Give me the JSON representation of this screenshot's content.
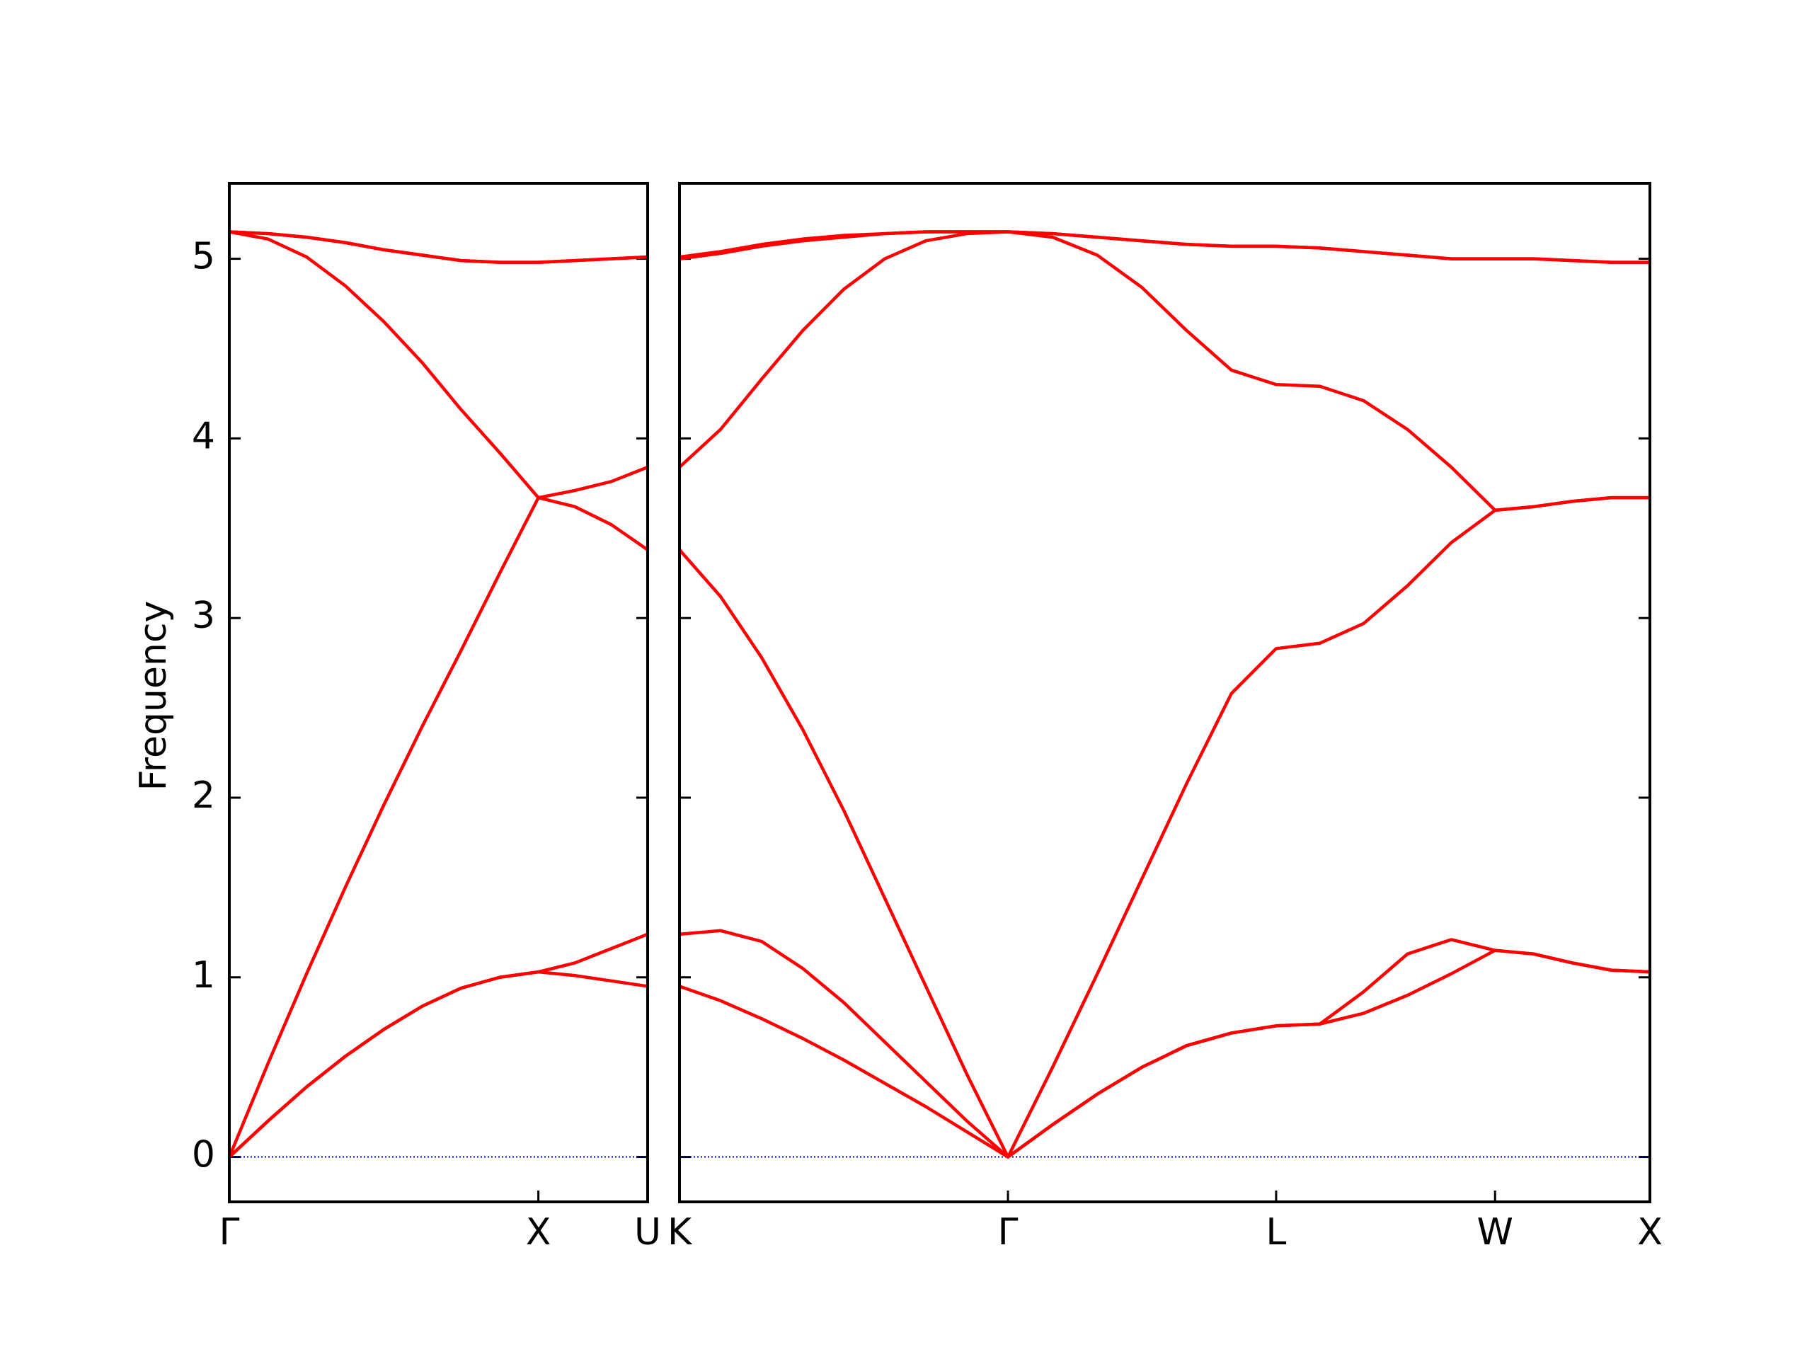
{
  "chart_data": [
    {
      "type": "line",
      "ylabel": "Frequency",
      "x": [
        0,
        0.125,
        0.25,
        0.375,
        0.5,
        0.625,
        0.75,
        0.875,
        1,
        1.118,
        1.236,
        1.3536
      ],
      "xlim": [
        0,
        1.3536
      ],
      "xticks": [
        {
          "value": 0,
          "label": "Γ"
        },
        {
          "value": 1,
          "label": "X"
        },
        {
          "value": 1.3536,
          "label": "U"
        }
      ],
      "ylim": [
        -0.25,
        5.42
      ],
      "yticks": [
        0,
        1,
        2,
        3,
        4,
        5
      ],
      "hline": {
        "y": 0,
        "color": "#0000aa"
      },
      "series": [
        {
          "color": "#ff0000",
          "values": [
            0,
            0.2,
            0.39,
            0.56,
            0.71,
            0.84,
            0.94,
            1.0,
            1.03,
            1.01,
            0.98,
            0.95
          ]
        },
        {
          "color": "#ff0000",
          "values": [
            0,
            0.2,
            0.39,
            0.56,
            0.71,
            0.84,
            0.94,
            1.0,
            1.03,
            1.08,
            1.16,
            1.24
          ]
        },
        {
          "color": "#ff0000",
          "values": [
            0,
            0.52,
            1.02,
            1.5,
            1.96,
            2.4,
            2.82,
            3.25,
            3.67,
            3.62,
            3.52,
            3.38
          ]
        },
        {
          "color": "#ff0000",
          "values": [
            5.15,
            5.11,
            5.01,
            4.85,
            4.65,
            4.42,
            4.16,
            3.92,
            3.67,
            3.71,
            3.76,
            3.84
          ]
        },
        {
          "color": "#ff0000",
          "values": [
            5.15,
            5.14,
            5.12,
            5.09,
            5.05,
            5.02,
            4.99,
            4.98,
            4.98,
            4.99,
            5.0,
            5.01
          ]
        },
        {
          "color": "#ff0000",
          "values": [
            5.15,
            5.14,
            5.12,
            5.09,
            5.05,
            5.02,
            4.99,
            4.98,
            4.98,
            4.99,
            5.0,
            5.01
          ]
        }
      ]
    },
    {
      "type": "line",
      "x": [
        0,
        0.1326,
        0.2652,
        0.3978,
        0.5303,
        0.6629,
        0.7955,
        0.9281,
        1.0607,
        1.205,
        1.3494,
        1.4937,
        1.638,
        1.7824,
        1.9267,
        2.0681,
        2.2095,
        2.351,
        2.4924,
        2.6338,
        2.7588,
        2.8838,
        3.0088,
        3.1338
      ],
      "xlim": [
        0,
        3.1338
      ],
      "xticks": [
        {
          "value": 0,
          "label": "K"
        },
        {
          "value": 1.0607,
          "label": "Γ"
        },
        {
          "value": 1.9267,
          "label": "L"
        },
        {
          "value": 2.6338,
          "label": "W"
        },
        {
          "value": 3.1338,
          "label": "X"
        }
      ],
      "ylim": [
        -0.25,
        5.42
      ],
      "hline": {
        "y": 0,
        "color": "#0000aa"
      },
      "series": [
        {
          "color": "#ff0000",
          "values": [
            0.95,
            0.87,
            0.77,
            0.66,
            0.54,
            0.41,
            0.28,
            0.14,
            0,
            0.18,
            0.35,
            0.5,
            0.62,
            0.69,
            0.73,
            0.74,
            0.8,
            0.9,
            1.02,
            1.15,
            1.13,
            1.08,
            1.04,
            1.03
          ]
        },
        {
          "color": "#ff0000",
          "values": [
            1.24,
            1.26,
            1.2,
            1.05,
            0.86,
            0.64,
            0.42,
            0.2,
            0,
            0.18,
            0.35,
            0.5,
            0.62,
            0.69,
            0.73,
            0.74,
            0.92,
            1.13,
            1.21,
            1.15,
            1.13,
            1.08,
            1.04,
            1.03
          ]
        },
        {
          "color": "#ff0000",
          "values": [
            3.38,
            3.12,
            2.78,
            2.38,
            1.93,
            1.44,
            0.95,
            0.46,
            0,
            0.5,
            1.02,
            1.55,
            2.08,
            2.58,
            2.83,
            2.86,
            2.97,
            3.18,
            3.42,
            3.6,
            3.62,
            3.65,
            3.67,
            3.67
          ]
        },
        {
          "color": "#ff0000",
          "values": [
            3.84,
            4.05,
            4.33,
            4.6,
            4.83,
            5.0,
            5.1,
            5.14,
            5.15,
            5.12,
            5.02,
            4.84,
            4.6,
            4.38,
            4.3,
            4.29,
            4.21,
            4.05,
            3.84,
            3.6,
            3.62,
            3.65,
            3.67,
            3.67
          ]
        },
        {
          "color": "#ff0000",
          "values": [
            5.0,
            5.03,
            5.07,
            5.1,
            5.12,
            5.14,
            5.15,
            5.15,
            5.15,
            5.14,
            5.12,
            5.1,
            5.08,
            5.07,
            5.07,
            5.06,
            5.04,
            5.02,
            5.0,
            5.0,
            5.0,
            4.99,
            4.98,
            4.98
          ]
        },
        {
          "color": "#ff0000",
          "values": [
            5.01,
            5.04,
            5.08,
            5.11,
            5.13,
            5.14,
            5.15,
            5.15,
            5.15,
            5.14,
            5.12,
            5.1,
            5.08,
            5.07,
            5.07,
            5.06,
            5.04,
            5.02,
            5.0,
            5.0,
            5.0,
            4.99,
            4.98,
            4.98
          ]
        }
      ]
    }
  ]
}
